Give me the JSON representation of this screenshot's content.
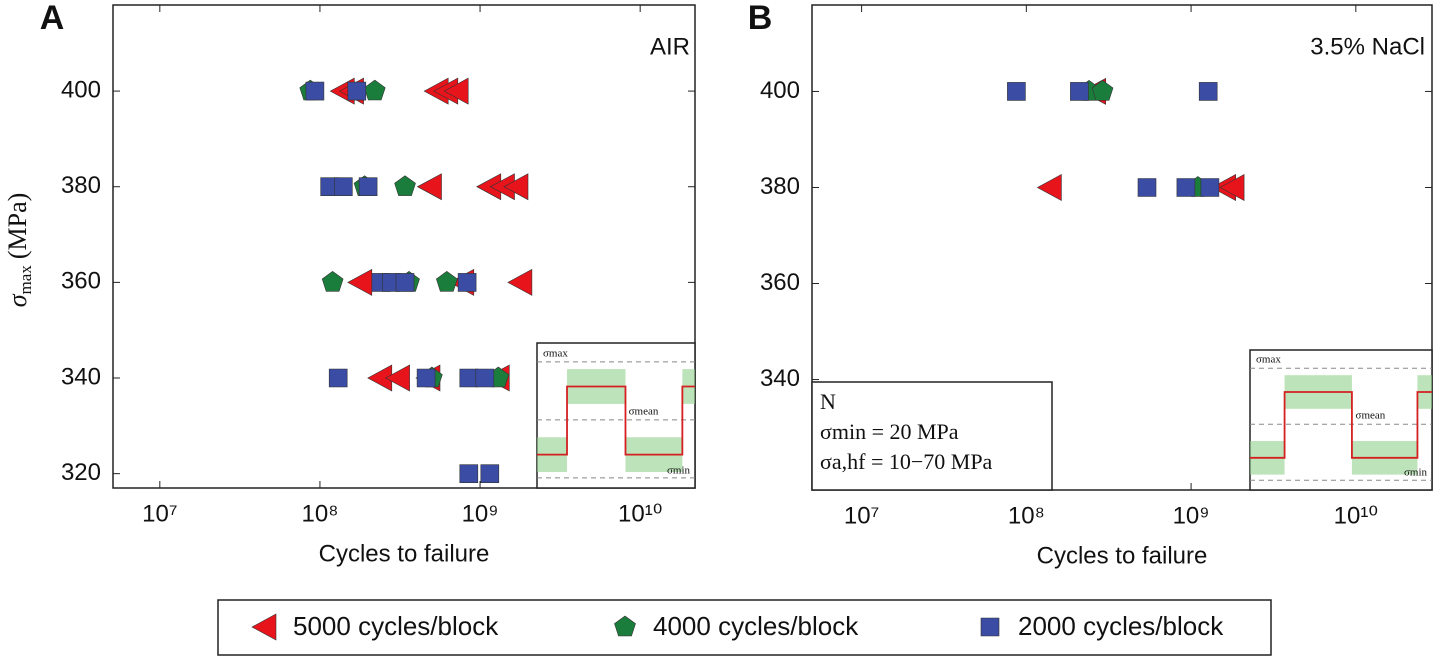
{
  "chart_data": [
    {
      "type": "scatter",
      "panel": "A",
      "annotation": "AIR",
      "xlabel": "Cycles to failure",
      "ylabel_symbol": "σ",
      "ylabel_subscript": "max",
      "ylabel_unit": "(MPa)",
      "xscale": "log",
      "xlim": [
        5100000,
        22000000000
      ],
      "ylim": [
        317,
        418
      ],
      "xticks": [
        {
          "value": 10000000,
          "label": "10⁷"
        },
        {
          "value": 100000000,
          "label": "10⁸"
        },
        {
          "value": 1000000000,
          "label": "10⁹"
        },
        {
          "value": 10000000000,
          "label": "10¹⁰"
        }
      ],
      "yticks": [
        320,
        340,
        360,
        380,
        400
      ],
      "inset_labels": [
        "σmax",
        "σmean",
        "σmin"
      ],
      "series": [
        {
          "x": [
            140000000,
            160000000,
            540000000,
            620000000,
            720000000,
            490000000,
            1150000000,
            1400000000,
            1700000000,
            180000000,
            780000000,
            1800000000,
            240000000,
            310000000,
            480000000,
            1300000000
          ],
          "y": [
            400,
            400,
            400,
            400,
            400,
            380,
            380,
            380,
            380,
            360,
            360,
            360,
            340,
            340,
            340,
            340
          ]
        },
        {
          "x": [
            87000000,
            220000000,
            190000000,
            340000000,
            120000000,
            360000000,
            620000000,
            500000000,
            1300000000
          ],
          "y": [
            400,
            400,
            380,
            380,
            360,
            360,
            360,
            340,
            340
          ]
        },
        {
          "x": [
            93000000,
            170000000,
            115000000,
            140000000,
            200000000,
            240000000,
            280000000,
            340000000,
            830000000,
            130000000,
            460000000,
            850000000,
            1070000000,
            850000000,
            1150000000
          ],
          "y": [
            400,
            400,
            380,
            380,
            380,
            360,
            360,
            360,
            360,
            340,
            340,
            340,
            340,
            320,
            320
          ]
        }
      ]
    },
    {
      "type": "scatter",
      "panel": "B",
      "annotation": "3.5% NaCl",
      "xlabel": "Cycles to failure",
      "xscale": "log",
      "xlim": [
        5000000,
        29000000000
      ],
      "ylim": [
        317,
        418
      ],
      "xticks": [
        {
          "value": 10000000,
          "label": "10⁷"
        },
        {
          "value": 100000000,
          "label": "10⁸"
        },
        {
          "value": 1000000000,
          "label": "10⁹"
        },
        {
          "value": 10000000000,
          "label": "10¹⁰"
        }
      ],
      "yticks": [
        340,
        360,
        380,
        400
      ],
      "inset_labels": [
        "σmax",
        "σmean",
        "σmin"
      ],
      "box_lines": [
        "N",
        "σmin = 20 MPa",
        "σa,hf = 10−70 MPa"
      ],
      "series": [
        {
          "x": [
            260000000,
            140000000,
            1600000000,
            1800000000
          ],
          "y": [
            400,
            380,
            380,
            380
          ]
        },
        {
          "x": [
            240000000,
            290000000,
            1100000000
          ],
          "y": [
            400,
            400,
            380
          ]
        },
        {
          "x": [
            87000000,
            210000000,
            1270000000,
            540000000,
            930000000,
            1300000000
          ],
          "y": [
            400,
            400,
            400,
            380,
            380,
            380
          ]
        }
      ]
    }
  ],
  "legend": [
    {
      "name": "5000 cycles/block",
      "color": "#e8141c",
      "marker": "triangle-left"
    },
    {
      "name": "4000 cycles/block",
      "color": "#1b7d3b",
      "marker": "pentagon"
    },
    {
      "name": "2000 cycles/block",
      "color": "#3a4ca3",
      "marker": "square"
    }
  ]
}
